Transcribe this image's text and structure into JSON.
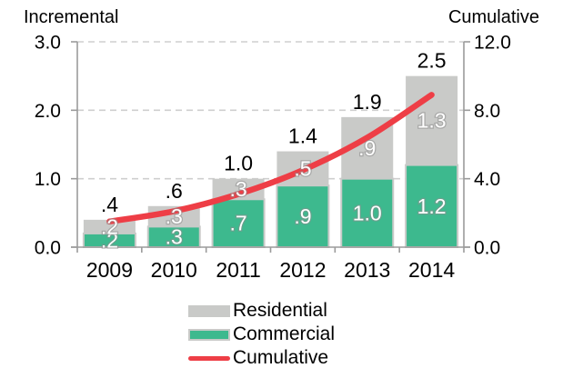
{
  "chart_data": {
    "type": "bar",
    "subtype": "stacked-bars-with-line-overlay",
    "categories": [
      "2009",
      "2010",
      "2011",
      "2012",
      "2013",
      "2014"
    ],
    "series": [
      {
        "name": "Commercial",
        "role": "bar-bottom-segment",
        "color": "#3db98e",
        "values": [
          0.2,
          0.3,
          0.7,
          0.9,
          1.0,
          1.2
        ],
        "labels": [
          ".2",
          ".3",
          ".7",
          ".9",
          "1.0",
          "1.2"
        ]
      },
      {
        "name": "Residential",
        "role": "bar-top-segment",
        "color": "#c9cac8",
        "values": [
          0.2,
          0.3,
          0.3,
          0.5,
          0.9,
          1.3
        ],
        "labels": [
          ".2",
          ".3",
          ".3",
          ".5",
          ".9",
          "1.3"
        ]
      },
      {
        "name": "Cumulative",
        "role": "line",
        "axis": "right",
        "color": "#ee3e46",
        "values": [
          1.5,
          2.1,
          3.1,
          4.5,
          6.4,
          8.9
        ]
      }
    ],
    "total_labels": [
      ".4",
      ".6",
      "1.0",
      "1.4",
      "1.9",
      "2.5"
    ],
    "left_axis": {
      "title": "Incremental",
      "ticks": [
        "3.0",
        "2.0",
        "1.0",
        "0.0"
      ],
      "range": [
        0,
        3
      ]
    },
    "right_axis": {
      "title": "Cumulative",
      "ticks": [
        "12.0",
        "8.0",
        "4.0",
        "0.0"
      ],
      "range": [
        0,
        12
      ]
    },
    "grid": true,
    "grid_style": "dashed",
    "legend_position": "bottom-center"
  },
  "legend": {
    "items": [
      {
        "label": "Residential",
        "swatch": "gray-rect"
      },
      {
        "label": "Commercial",
        "swatch": "green-rect-gray-border"
      },
      {
        "label": "Cumulative",
        "swatch": "red-line"
      }
    ]
  },
  "colors": {
    "commercial_green": "#3db98e",
    "residential_gray": "#c9cac8",
    "cumulative_red": "#ee3e46",
    "axis_gray": "#9b9b9b",
    "gridline_gray": "#cfcfcf",
    "text_black": "#000000",
    "segment_label_white": "#ffffff"
  }
}
